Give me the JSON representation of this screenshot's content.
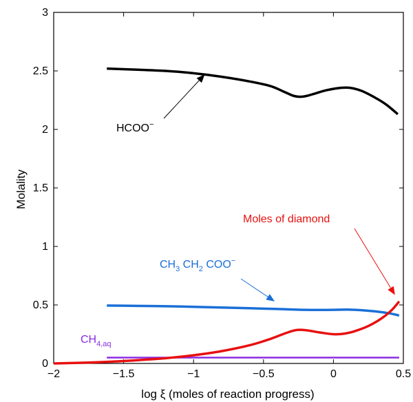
{
  "chart_data": {
    "type": "line",
    "title": "",
    "xlabel": "log ξ (moles of reaction progress)",
    "ylabel": "Molality",
    "xlim": [
      -2,
      0.5
    ],
    "ylim": [
      0,
      3
    ],
    "xticks": [
      -2,
      -1.5,
      -1,
      -0.5,
      0,
      0.5
    ],
    "xtick_labels": [
      "−2",
      "−1.5",
      "−1",
      "−0.5",
      "0",
      "0.5"
    ],
    "yticks": [
      0,
      0.5,
      1,
      1.5,
      2,
      2.5,
      3
    ],
    "ytick_labels": [
      "0",
      "0.5",
      "1",
      "1.5",
      "2",
      "2.5",
      "3"
    ],
    "grid": false,
    "series": [
      {
        "name": "HCOO⁻",
        "color": "#000000",
        "x": [
          -1.62,
          -1.4,
          -1.2,
          -1.0,
          -0.8,
          -0.6,
          -0.45,
          -0.35,
          -0.28,
          -0.22,
          -0.15,
          -0.05,
          0.05,
          0.12,
          0.2,
          0.3,
          0.38,
          0.46
        ],
        "y": [
          2.52,
          2.51,
          2.5,
          2.48,
          2.45,
          2.41,
          2.37,
          2.32,
          2.285,
          2.28,
          2.3,
          2.335,
          2.355,
          2.355,
          2.33,
          2.27,
          2.21,
          2.13
        ]
      },
      {
        "name": "CH3CH2COO⁻",
        "color": "#1a6fd8",
        "x": [
          -1.62,
          -1.4,
          -1.2,
          -1.0,
          -0.8,
          -0.6,
          -0.4,
          -0.2,
          0.0,
          0.1,
          0.2,
          0.3,
          0.4,
          0.47
        ],
        "y": [
          0.495,
          0.492,
          0.489,
          0.484,
          0.478,
          0.472,
          0.465,
          0.458,
          0.458,
          0.46,
          0.455,
          0.445,
          0.428,
          0.41
        ]
      },
      {
        "name": "CH4,aq",
        "color": "#8a2be2",
        "x": [
          -1.62,
          -1.0,
          -0.5,
          0.0,
          0.47
        ],
        "y": [
          0.05,
          0.05,
          0.05,
          0.05,
          0.05
        ]
      },
      {
        "name": "Moles of diamond",
        "color": "#e81010",
        "x": [
          -2.0,
          -1.8,
          -1.6,
          -1.4,
          -1.2,
          -1.0,
          -0.8,
          -0.6,
          -0.45,
          -0.35,
          -0.27,
          -0.2,
          -0.1,
          0.0,
          0.08,
          0.15,
          0.25,
          0.35,
          0.42,
          0.47
        ],
        "y": [
          0.0,
          0.006,
          0.015,
          0.028,
          0.045,
          0.07,
          0.105,
          0.155,
          0.21,
          0.255,
          0.285,
          0.285,
          0.265,
          0.25,
          0.255,
          0.275,
          0.32,
          0.39,
          0.46,
          0.53
        ]
      }
    ],
    "annotations": [
      {
        "id": "hcoo",
        "label": "HCOO",
        "charge": "−",
        "color": "#000000",
        "tip": [
          -0.92,
          2.47
        ]
      },
      {
        "id": "propionate",
        "parts": [
          "CH",
          "3",
          " CH",
          "2",
          " COO"
        ],
        "charge": "−",
        "color": "#1a6fd8",
        "tip": [
          -0.42,
          0.53
        ]
      },
      {
        "id": "methane",
        "label": "CH",
        "sub": "4,aq",
        "color": "#8a2be2"
      },
      {
        "id": "diamond",
        "label": "Moles of diamond",
        "color": "#e81010",
        "tip": [
          0.44,
          0.585
        ]
      }
    ]
  }
}
